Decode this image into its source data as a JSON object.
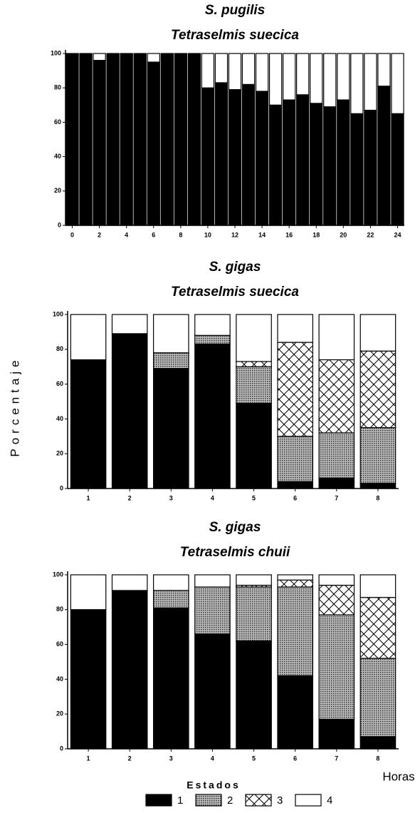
{
  "y_axis_label": "Porcentaje",
  "x_axis_label": "Horas",
  "legend_title": "Estados",
  "chart_data": [
    {
      "type": "bar",
      "stacked": true,
      "title": "S. pugilis",
      "subtitle": "Tetraselmis suecica",
      "categories": [
        "0",
        null,
        "2",
        null,
        "4",
        null,
        "6",
        null,
        "8",
        null,
        "10",
        null,
        "12",
        null,
        "14",
        null,
        "16",
        null,
        "18",
        null,
        "20",
        null,
        "22",
        null,
        "24"
      ],
      "ylim": [
        0,
        100
      ],
      "yticks": [
        0,
        20,
        40,
        60,
        80,
        100
      ],
      "series": [
        {
          "name": "1",
          "color": "#000000",
          "values": [
            100,
            100,
            96,
            100,
            100,
            100,
            95,
            100,
            100,
            100,
            80,
            83,
            79,
            82,
            78,
            70,
            73,
            76,
            71,
            69,
            73,
            65,
            67,
            81,
            65
          ]
        },
        {
          "name": "4",
          "color": "#ffffff",
          "values": [
            0,
            0,
            4,
            0,
            0,
            0,
            5,
            0,
            0,
            0,
            20,
            17,
            21,
            18,
            22,
            30,
            27,
            24,
            29,
            31,
            27,
            35,
            33,
            19,
            35
          ]
        }
      ]
    },
    {
      "type": "bar",
      "stacked": true,
      "title": "S. gigas",
      "subtitle": "Tetraselmis suecica",
      "categories": [
        "1",
        "2",
        "3",
        "4",
        "5",
        "6",
        "7",
        "8"
      ],
      "ylim": [
        0,
        100
      ],
      "yticks": [
        0,
        20,
        40,
        60,
        80,
        100
      ],
      "series": [
        {
          "name": "1",
          "color": "#000000",
          "values": [
            74,
            89,
            69,
            83,
            49,
            4,
            6,
            3
          ]
        },
        {
          "name": "2",
          "color": "#9a9a9a",
          "pattern": "dots",
          "values": [
            0,
            0,
            9,
            5,
            21,
            26,
            26,
            32
          ]
        },
        {
          "name": "3",
          "color": "#ffffff",
          "pattern": "cross",
          "values": [
            0,
            0,
            0,
            0,
            3,
            54,
            42,
            44
          ]
        },
        {
          "name": "4",
          "color": "#ffffff",
          "values": [
            26,
            11,
            22,
            12,
            27,
            16,
            26,
            21
          ]
        }
      ]
    },
    {
      "type": "bar",
      "stacked": true,
      "title": "S. gigas",
      "subtitle": "Tetraselmis chuii",
      "categories": [
        "1",
        "2",
        "3",
        "4",
        "5",
        "6",
        "7",
        "8"
      ],
      "ylim": [
        0,
        100
      ],
      "yticks": [
        0,
        20,
        40,
        60,
        80,
        100
      ],
      "series": [
        {
          "name": "1",
          "color": "#000000",
          "values": [
            80,
            91,
            81,
            66,
            62,
            42,
            17,
            7
          ]
        },
        {
          "name": "2",
          "color": "#9a9a9a",
          "pattern": "dots",
          "values": [
            0,
            0,
            10,
            27,
            31,
            51,
            60,
            45
          ]
        },
        {
          "name": "3",
          "color": "#ffffff",
          "pattern": "cross",
          "values": [
            0,
            0,
            0,
            0,
            1,
            4,
            17,
            35
          ]
        },
        {
          "name": "4",
          "color": "#ffffff",
          "values": [
            20,
            9,
            9,
            7,
            6,
            3,
            6,
            13
          ]
        }
      ]
    }
  ]
}
